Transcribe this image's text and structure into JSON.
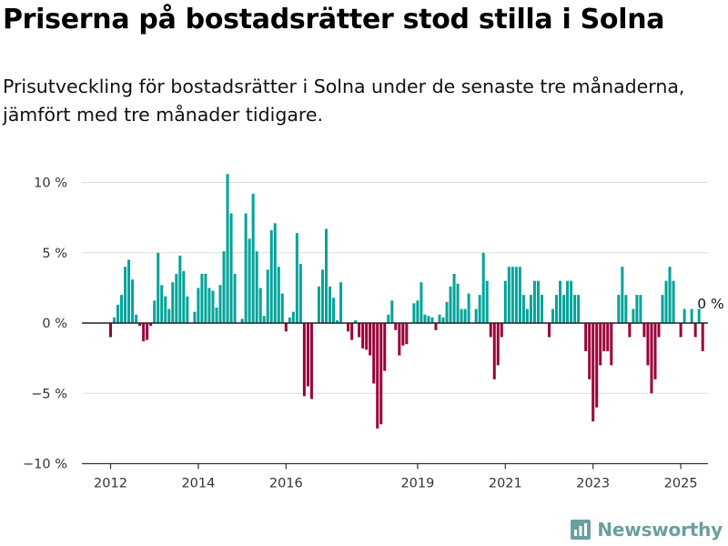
{
  "header": {
    "title": "Priserna på bostadsrätter stod stilla i Solna",
    "subtitle": "Prisutveckling för bostadsrätter i Solna under de senaste tre månaderna, jämfört med tre månader tidigare."
  },
  "brand": {
    "name": "Newsworthy",
    "icon": "newsworthy-logo-icon",
    "color": "#6aa09f"
  },
  "colors": {
    "positive": "#00a39a",
    "negative": "#9a0039",
    "grid": "#dddddd",
    "axis": "#333333"
  },
  "chart_data": {
    "type": "bar",
    "title": "Priserna på bostadsrätter stod stilla i Solna",
    "subtitle": "Prisutveckling för bostadsrätter i Solna under de senaste tre månaderna, jämfört med tre månader tidigare.",
    "xlabel": "",
    "ylabel": "",
    "ylim": [
      -10,
      10.8
    ],
    "y_ticks": [
      10,
      5,
      0,
      -5,
      -10
    ],
    "y_tick_labels": [
      "10 %",
      "5 %",
      "0 %",
      "−5 %",
      "−10 %"
    ],
    "x_ticks": [
      2012,
      2014,
      2016,
      2019,
      2021,
      2023,
      2025
    ],
    "x_tick_labels": [
      "2012",
      "2014",
      "2016",
      "2019",
      "2021",
      "2023",
      "2025"
    ],
    "grid": true,
    "legend": "none",
    "annotation": {
      "text": "0 %",
      "target": "last"
    },
    "points": [
      {
        "date": "2012-01",
        "value": -1.0
      },
      {
        "date": "2012-02",
        "value": 0.4
      },
      {
        "date": "2012-03",
        "value": 1.3
      },
      {
        "date": "2012-04",
        "value": 2.0
      },
      {
        "date": "2012-05",
        "value": 4.0
      },
      {
        "date": "2012-06",
        "value": 4.5
      },
      {
        "date": "2012-07",
        "value": 3.1
      },
      {
        "date": "2012-08",
        "value": 0.6
      },
      {
        "date": "2012-09",
        "value": -0.2
      },
      {
        "date": "2012-10",
        "value": -1.3
      },
      {
        "date": "2012-11",
        "value": -1.2
      },
      {
        "date": "2012-12",
        "value": -0.2
      },
      {
        "date": "2013-01",
        "value": 1.6
      },
      {
        "date": "2013-02",
        "value": 5.0
      },
      {
        "date": "2013-03",
        "value": 2.7
      },
      {
        "date": "2013-04",
        "value": 1.9
      },
      {
        "date": "2013-05",
        "value": 1.0
      },
      {
        "date": "2013-06",
        "value": 2.9
      },
      {
        "date": "2013-07",
        "value": 3.5
      },
      {
        "date": "2013-08",
        "value": 4.8
      },
      {
        "date": "2013-09",
        "value": 3.7
      },
      {
        "date": "2013-10",
        "value": 1.9
      },
      {
        "date": "2013-11",
        "value": 0.0
      },
      {
        "date": "2013-12",
        "value": 0.8
      },
      {
        "date": "2014-01",
        "value": 2.5
      },
      {
        "date": "2014-02",
        "value": 3.5
      },
      {
        "date": "2014-03",
        "value": 3.5
      },
      {
        "date": "2014-04",
        "value": 2.5
      },
      {
        "date": "2014-05",
        "value": 2.3
      },
      {
        "date": "2014-06",
        "value": 1.1
      },
      {
        "date": "2014-07",
        "value": 2.7
      },
      {
        "date": "2014-08",
        "value": 5.1
      },
      {
        "date": "2014-09",
        "value": 10.6
      },
      {
        "date": "2014-10",
        "value": 7.8
      },
      {
        "date": "2014-11",
        "value": 3.5
      },
      {
        "date": "2014-12",
        "value": 0.0
      },
      {
        "date": "2015-01",
        "value": 0.3
      },
      {
        "date": "2015-02",
        "value": 7.8
      },
      {
        "date": "2015-03",
        "value": 6.0
      },
      {
        "date": "2015-04",
        "value": 9.2
      },
      {
        "date": "2015-05",
        "value": 5.1
      },
      {
        "date": "2015-06",
        "value": 2.5
      },
      {
        "date": "2015-07",
        "value": 0.5
      },
      {
        "date": "2015-08",
        "value": 3.8
      },
      {
        "date": "2015-09",
        "value": 6.6
      },
      {
        "date": "2015-10",
        "value": 7.1
      },
      {
        "date": "2015-11",
        "value": 4.0
      },
      {
        "date": "2015-12",
        "value": 2.1
      },
      {
        "date": "2016-01",
        "value": -0.6
      },
      {
        "date": "2016-02",
        "value": 0.4
      },
      {
        "date": "2016-03",
        "value": 0.8
      },
      {
        "date": "2016-04",
        "value": 6.4
      },
      {
        "date": "2016-05",
        "value": 4.2
      },
      {
        "date": "2016-06",
        "value": -5.2
      },
      {
        "date": "2016-07",
        "value": -4.5
      },
      {
        "date": "2016-08",
        "value": -5.4
      },
      {
        "date": "2016-09",
        "value": 0.0
      },
      {
        "date": "2016-10",
        "value": 2.6
      },
      {
        "date": "2016-11",
        "value": 3.8
      },
      {
        "date": "2016-12",
        "value": 6.7
      },
      {
        "date": "2017-01",
        "value": 2.6
      },
      {
        "date": "2017-02",
        "value": 1.8
      },
      {
        "date": "2017-03",
        "value": 0.2
      },
      {
        "date": "2017-04",
        "value": 2.9
      },
      {
        "date": "2017-05",
        "value": 0.0
      },
      {
        "date": "2017-06",
        "value": -0.6
      },
      {
        "date": "2017-07",
        "value": -1.2
      },
      {
        "date": "2017-08",
        "value": 0.2
      },
      {
        "date": "2017-09",
        "value": -1.0
      },
      {
        "date": "2017-10",
        "value": -1.8
      },
      {
        "date": "2017-11",
        "value": -1.9
      },
      {
        "date": "2017-12",
        "value": -2.3
      },
      {
        "date": "2018-01",
        "value": -4.3
      },
      {
        "date": "2018-02",
        "value": -7.5
      },
      {
        "date": "2018-03",
        "value": -7.2
      },
      {
        "date": "2018-04",
        "value": -3.4
      },
      {
        "date": "2018-05",
        "value": 0.6
      },
      {
        "date": "2018-06",
        "value": 1.6
      },
      {
        "date": "2018-07",
        "value": -0.5
      },
      {
        "date": "2018-08",
        "value": -2.3
      },
      {
        "date": "2018-09",
        "value": -1.6
      },
      {
        "date": "2018-10",
        "value": -1.5
      },
      {
        "date": "2018-11",
        "value": 0.0
      },
      {
        "date": "2018-12",
        "value": 1.4
      },
      {
        "date": "2019-01",
        "value": 1.6
      },
      {
        "date": "2019-02",
        "value": 2.9
      },
      {
        "date": "2019-03",
        "value": 0.6
      },
      {
        "date": "2019-04",
        "value": 0.5
      },
      {
        "date": "2019-05",
        "value": 0.4
      },
      {
        "date": "2019-06",
        "value": -0.5
      },
      {
        "date": "2019-07",
        "value": 0.6
      },
      {
        "date": "2019-08",
        "value": 0.4
      },
      {
        "date": "2019-09",
        "value": 1.5
      },
      {
        "date": "2019-10",
        "value": 2.6
      },
      {
        "date": "2019-11",
        "value": 3.5
      },
      {
        "date": "2019-12",
        "value": 2.8
      },
      {
        "date": "2020-01",
        "value": 1.0
      },
      {
        "date": "2020-02",
        "value": 1.0
      },
      {
        "date": "2020-03",
        "value": 2.1
      },
      {
        "date": "2020-04",
        "value": 0.0
      },
      {
        "date": "2020-05",
        "value": 1.0
      },
      {
        "date": "2020-06",
        "value": 2.0
      },
      {
        "date": "2020-07",
        "value": 5.0
      },
      {
        "date": "2020-08",
        "value": 3.0
      },
      {
        "date": "2020-09",
        "value": -1.0
      },
      {
        "date": "2020-10",
        "value": -4.0
      },
      {
        "date": "2020-11",
        "value": -3.0
      },
      {
        "date": "2020-12",
        "value": -1.0
      },
      {
        "date": "2021-01",
        "value": 3.0
      },
      {
        "date": "2021-02",
        "value": 4.0
      },
      {
        "date": "2021-03",
        "value": 4.0
      },
      {
        "date": "2021-04",
        "value": 4.0
      },
      {
        "date": "2021-05",
        "value": 4.0
      },
      {
        "date": "2021-06",
        "value": 2.0
      },
      {
        "date": "2021-07",
        "value": 1.0
      },
      {
        "date": "2021-08",
        "value": 2.0
      },
      {
        "date": "2021-09",
        "value": 3.0
      },
      {
        "date": "2021-10",
        "value": 3.0
      },
      {
        "date": "2021-11",
        "value": 2.0
      },
      {
        "date": "2021-12",
        "value": 0.0
      },
      {
        "date": "2022-01",
        "value": -1.0
      },
      {
        "date": "2022-02",
        "value": 1.0
      },
      {
        "date": "2022-03",
        "value": 2.0
      },
      {
        "date": "2022-04",
        "value": 3.0
      },
      {
        "date": "2022-05",
        "value": 2.0
      },
      {
        "date": "2022-06",
        "value": 3.0
      },
      {
        "date": "2022-07",
        "value": 3.0
      },
      {
        "date": "2022-08",
        "value": 2.0
      },
      {
        "date": "2022-09",
        "value": 2.0
      },
      {
        "date": "2022-10",
        "value": 0.0
      },
      {
        "date": "2022-11",
        "value": -2.0
      },
      {
        "date": "2022-12",
        "value": -4.0
      },
      {
        "date": "2023-01",
        "value": -7.0
      },
      {
        "date": "2023-02",
        "value": -6.0
      },
      {
        "date": "2023-03",
        "value": -3.0
      },
      {
        "date": "2023-04",
        "value": -2.0
      },
      {
        "date": "2023-05",
        "value": -2.0
      },
      {
        "date": "2023-06",
        "value": -3.0
      },
      {
        "date": "2023-07",
        "value": 0.0
      },
      {
        "date": "2023-08",
        "value": 2.0
      },
      {
        "date": "2023-09",
        "value": 4.0
      },
      {
        "date": "2023-10",
        "value": 2.0
      },
      {
        "date": "2023-11",
        "value": -1.0
      },
      {
        "date": "2023-12",
        "value": 1.0
      },
      {
        "date": "2024-01",
        "value": 2.0
      },
      {
        "date": "2024-02",
        "value": 2.0
      },
      {
        "date": "2024-03",
        "value": -1.0
      },
      {
        "date": "2024-04",
        "value": -3.0
      },
      {
        "date": "2024-05",
        "value": -5.0
      },
      {
        "date": "2024-06",
        "value": -4.0
      },
      {
        "date": "2024-07",
        "value": -1.0
      },
      {
        "date": "2024-08",
        "value": 2.0
      },
      {
        "date": "2024-09",
        "value": 3.0
      },
      {
        "date": "2024-10",
        "value": 4.0
      },
      {
        "date": "2024-11",
        "value": 3.0
      },
      {
        "date": "2024-12",
        "value": 0.0
      },
      {
        "date": "2025-01",
        "value": -1.0
      },
      {
        "date": "2025-02",
        "value": 1.0
      },
      {
        "date": "2025-03",
        "value": 0.0
      },
      {
        "date": "2025-04",
        "value": 1.0
      },
      {
        "date": "2025-05",
        "value": -1.0
      },
      {
        "date": "2025-06",
        "value": 1.0
      },
      {
        "date": "2025-07",
        "value": -2.0
      },
      {
        "date": "2025-08",
        "value": 0.0
      }
    ]
  }
}
